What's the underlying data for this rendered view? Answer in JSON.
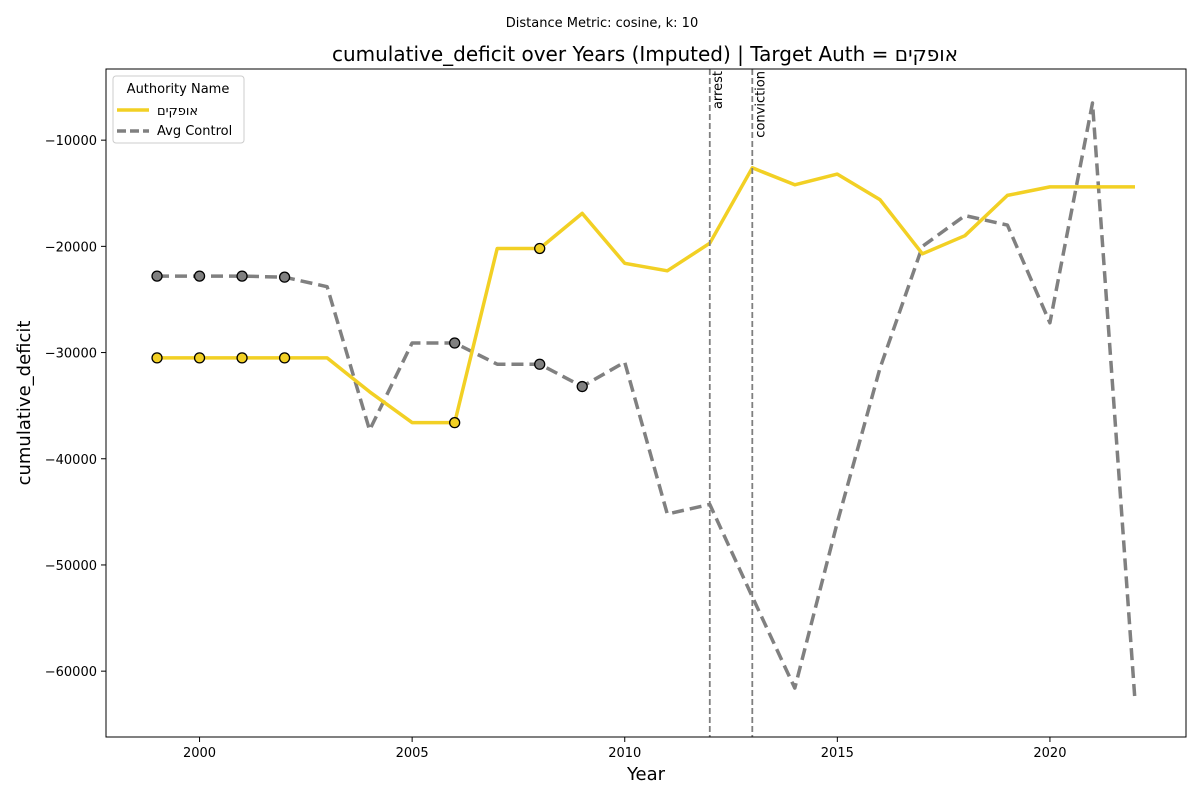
{
  "chart_data": {
    "type": "line",
    "suptitle": "Distance Metric: cosine, k: 10",
    "title": "cumulative_deficit over Years (Imputed) | Target Auth = אופקים",
    "xlabel": "Year",
    "ylabel": "cumulative_deficit",
    "xlim": [
      1997.8,
      2023.2
    ],
    "ylim": [
      -66200,
      -3300
    ],
    "xticks": [
      2000,
      2005,
      2010,
      2015,
      2020
    ],
    "xtick_labels": [
      "2000",
      "2005",
      "2010",
      "2015",
      "2020"
    ],
    "yticks": [
      -60000,
      -50000,
      -40000,
      -30000,
      -20000,
      -10000
    ],
    "ytick_labels": [
      "−60000",
      "−50000",
      "−40000",
      "−30000",
      "−20000",
      "−10000"
    ],
    "grid": false,
    "legend": {
      "title": "Authority Name",
      "placement": "top-left"
    },
    "series": [
      {
        "name": "אופקים",
        "color": "#f2d024",
        "style": "solid",
        "x": [
          1999,
          2000,
          2001,
          2002,
          2003,
          2004,
          2005,
          2006,
          2007,
          2008,
          2009,
          2010,
          2011,
          2012,
          2013,
          2014,
          2015,
          2016,
          2017,
          2018,
          2019,
          2020,
          2021,
          2022
        ],
        "y": [
          -30500,
          -30500,
          -30500,
          -30500,
          -30500,
          -33700,
          -36600,
          -36600,
          -20200,
          -20200,
          -16900,
          -21600,
          -22300,
          -19700,
          -12600,
          -14200,
          -13200,
          -15600,
          -20700,
          -19000,
          -15200,
          -14400,
          -14400,
          -14400
        ],
        "imputed_x": [
          1999,
          2000,
          2001,
          2002,
          2006,
          2008
        ],
        "marker_color": "#f2d024"
      },
      {
        "name": "Avg Control",
        "color": "#808080",
        "style": "dashed",
        "x": [
          1999,
          2000,
          2001,
          2002,
          2003,
          2004,
          2005,
          2006,
          2007,
          2008,
          2009,
          2010,
          2011,
          2012,
          2013,
          2014,
          2015,
          2016,
          2017,
          2018,
          2019,
          2020,
          2021,
          2022
        ],
        "y": [
          -22800,
          -22800,
          -22800,
          -22900,
          -23800,
          -37300,
          -29100,
          -29100,
          -31100,
          -31100,
          -33200,
          -30900,
          -45200,
          -44300,
          -53000,
          -61600,
          -46000,
          -31500,
          -20000,
          -17100,
          -18000,
          -27200,
          -6500,
          -62800
        ],
        "imputed_x": [
          1999,
          2000,
          2001,
          2002,
          2006,
          2008,
          2009
        ],
        "marker_color": "#808080"
      }
    ],
    "vlines": [
      {
        "x": 2012,
        "label": "arrest"
      },
      {
        "x": 2013,
        "label": "conviction"
      }
    ]
  }
}
